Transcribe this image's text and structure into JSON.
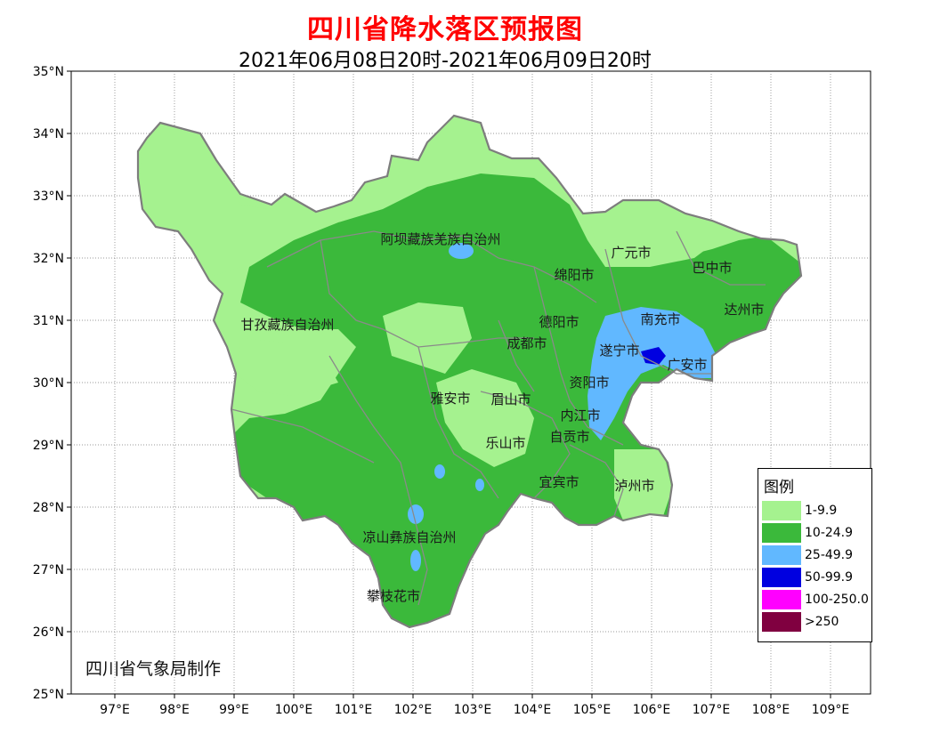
{
  "map": {
    "title": "四川省降水落区预报图",
    "subtitle": "2021年06月08日20时-2021年06月09日20时",
    "producer": "四川省气象局制作",
    "lat_ticks": [
      "35°N",
      "34°N",
      "33°N",
      "32°N",
      "31°N",
      "30°N",
      "29°N",
      "28°N",
      "27°N",
      "26°N",
      "25°N"
    ],
    "lon_ticks": [
      "97°E",
      "98°E",
      "99°E",
      "100°E",
      "101°E",
      "102°E",
      "103°E",
      "104°E",
      "105°E",
      "106°E",
      "107°E",
      "108°E",
      "109°E"
    ],
    "regions": [
      {
        "name": "阿坝藏族羌族自治州"
      },
      {
        "name": "甘孜藏族自治州"
      },
      {
        "name": "广元市"
      },
      {
        "name": "巴中市"
      },
      {
        "name": "绵阳市"
      },
      {
        "name": "达州市"
      },
      {
        "name": "南充市"
      },
      {
        "name": "德阳市"
      },
      {
        "name": "成都市"
      },
      {
        "name": "遂宁市"
      },
      {
        "name": "广安市"
      },
      {
        "name": "资阳市"
      },
      {
        "name": "雅安市"
      },
      {
        "name": "眉山市"
      },
      {
        "name": "内江市"
      },
      {
        "name": "乐山市"
      },
      {
        "name": "自贡市"
      },
      {
        "name": "宜宾市"
      },
      {
        "name": "泸州市"
      },
      {
        "name": "凉山彝族自治州"
      },
      {
        "name": "攀枝花市"
      }
    ]
  },
  "legend": {
    "title": "图例",
    "items": [
      {
        "label": "1-9.9",
        "color": "#a5f28f"
      },
      {
        "label": "10-24.9",
        "color": "#3bb93b"
      },
      {
        "label": "25-49.9",
        "color": "#61b8ff"
      },
      {
        "label": "50-99.9",
        "color": "#0000e0"
      },
      {
        "label": "100-250.0",
        "color": "#ff00ff"
      },
      {
        "label": ">250",
        "color": "#800040"
      }
    ]
  }
}
